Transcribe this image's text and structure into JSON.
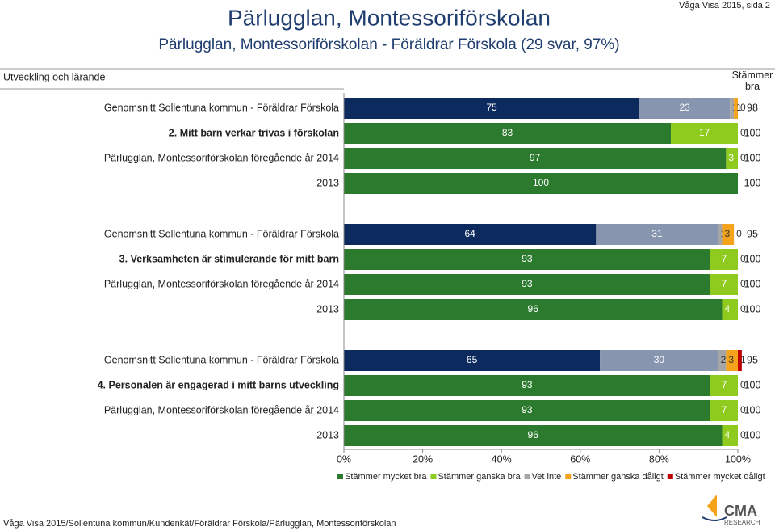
{
  "header": {
    "title": "Pärlugglan, Montessoriförskolan",
    "subtitle": "Pärlugglan, Montessoriförskolan - Föräldrar Förskola (29 svar, 97%)",
    "page_ref": "Våga Visa 2015, sida 2",
    "section": "Utveckling och lärande",
    "footer": "Våga Visa 2015/Sollentuna kommun/Kundenkät/Föräldrar Förskola/Pärlugglan, Montessoriförskolan",
    "logo": "CMA",
    "logo_sub": "RESEARCH"
  },
  "chart_data": {
    "type": "stacked-barh",
    "categories": [
      "Genomsnitt Sollentuna kommun - Föräldrar Förskola",
      "2. Mitt barn verkar trivas i förskolan",
      "Pärlugglan, Montessoriförskolan föregående år 2014",
      "2013",
      "Genomsnitt Sollentuna kommun - Föräldrar Förskola",
      "3. Verksamheten är stimulerande för mitt barn",
      "Pärlugglan, Montessoriförskolan föregående år 2014",
      "2013",
      "Genomsnitt Sollentuna kommun - Föräldrar Förskola",
      "4. Personalen är engagerad i mitt barns utveckling",
      "Pärlugglan, Montessoriförskolan föregående år 2014",
      "2013"
    ],
    "series": [
      {
        "name": "Stämmer mycket bra",
        "color": "#2b7a2e",
        "values": [
          75,
          83,
          97,
          100,
          64,
          93,
          93,
          96,
          65,
          93,
          93,
          96
        ]
      },
      {
        "name": "Stämmer ganska bra",
        "color": "#8fcb1e",
        "values": [
          23,
          17,
          3,
          0,
          31,
          7,
          7,
          4,
          30,
          7,
          7,
          4
        ]
      },
      {
        "name": "Vet inte",
        "color": "#a6a6a6",
        "values": [
          1,
          0,
          0,
          null,
          1,
          0,
          0,
          0,
          2,
          0,
          0,
          0
        ]
      },
      {
        "name": "Stämmer ganska dåligt",
        "color": "#f5a31a",
        "values": [
          1,
          null,
          null,
          null,
          3,
          null,
          null,
          null,
          3,
          null,
          null,
          null
        ]
      },
      {
        "name": "Stämmer mycket dåligt",
        "color": "#c00000",
        "values": [
          0,
          null,
          null,
          null,
          0,
          null,
          null,
          null,
          1,
          null,
          null,
          null
        ]
      }
    ],
    "benchmark_rows": [
      0,
      4,
      8
    ],
    "benchmark_colors": [
      "#0d2a5e",
      "#8795ae"
    ],
    "bold_rows": [
      1,
      5,
      9
    ],
    "right_title": "Stämmer bra",
    "right_values": [
      98,
      100,
      100,
      100,
      95,
      100,
      100,
      100,
      95,
      100,
      100,
      100
    ],
    "xlim": [
      0,
      100
    ],
    "xticks": [
      {
        "value": 0,
        "label": "0%"
      },
      {
        "value": 20,
        "label": "20%"
      },
      {
        "value": 40,
        "label": "40%"
      },
      {
        "value": 60,
        "label": "60%"
      },
      {
        "value": 80,
        "label": "80%"
      },
      {
        "value": 100,
        "label": "100%"
      }
    ]
  }
}
